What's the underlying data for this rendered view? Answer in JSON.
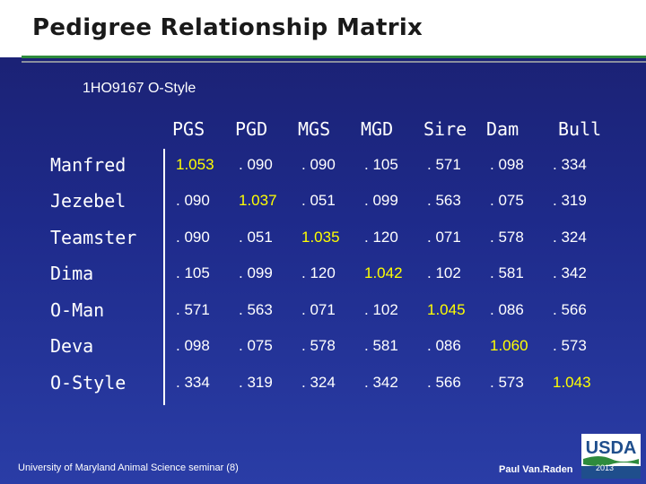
{
  "title": "Pedigree Relationship Matrix",
  "subtitle": "1HO9167 O-Style",
  "columns": [
    "PGS",
    "PGD",
    "MGS",
    "MGD",
    "Sire",
    "Dam",
    "Bull"
  ],
  "rows": [
    {
      "name": "Manfred",
      "values": [
        "1.053",
        ". 090",
        ". 090",
        ". 105",
        ". 571",
        ". 098",
        ". 334"
      ]
    },
    {
      "name": "Jezebel",
      "values": [
        ". 090",
        "1.037",
        ". 051",
        ". 099",
        ". 563",
        ". 075",
        ". 319"
      ]
    },
    {
      "name": "Teamster",
      "values": [
        ". 090",
        ". 051",
        "1.035",
        ". 120",
        ". 071",
        ". 578",
        ". 324"
      ]
    },
    {
      "name": "Dima",
      "values": [
        ". 105",
        ". 099",
        ". 120",
        "1.042",
        ". 102",
        ". 581",
        ". 342"
      ]
    },
    {
      "name": "O-Man",
      "values": [
        ". 571",
        ". 563",
        ". 071",
        ". 102",
        "1.045",
        ". 086",
        ". 566"
      ]
    },
    {
      "name": "Deva",
      "values": [
        ". 098",
        ". 075",
        ". 578",
        ". 581",
        ". 086",
        "1.060",
        ". 573"
      ]
    },
    {
      "name": "O-Style",
      "values": [
        ". 334",
        ". 319",
        ". 324",
        ". 342",
        ". 566",
        ". 573",
        "1.043"
      ]
    }
  ],
  "footer": {
    "left": "University of Maryland Animal Science seminar (8)",
    "right": "Paul Van.Raden",
    "logo_text": "USDA",
    "logo_year": "2013"
  },
  "colors": {
    "diagonal": "#ffff00",
    "text": "#ffffff",
    "accent_rule": "#2e8b3c"
  }
}
